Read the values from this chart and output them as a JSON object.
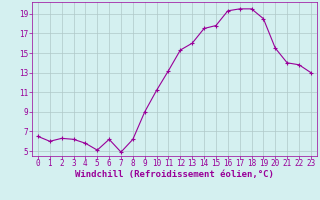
{
  "x": [
    0,
    1,
    2,
    3,
    4,
    5,
    6,
    7,
    8,
    9,
    10,
    11,
    12,
    13,
    14,
    15,
    16,
    17,
    18,
    19,
    20,
    21,
    22,
    23
  ],
  "y": [
    6.5,
    6.0,
    6.3,
    6.2,
    5.8,
    5.1,
    6.2,
    4.9,
    6.2,
    9.0,
    11.2,
    13.2,
    15.3,
    16.0,
    17.5,
    17.8,
    19.3,
    19.5,
    19.5,
    18.5,
    15.5,
    14.0,
    13.8,
    13.0
  ],
  "line_color": "#990099",
  "marker": "+",
  "marker_size": 3,
  "marker_lw": 0.8,
  "bg_color": "#d4f0f0",
  "grid_color": "#b0c8c8",
  "xlabel": "Windchill (Refroidissement éolien,°C)",
  "xlabel_color": "#990099",
  "xlabel_fontsize": 6.5,
  "yticks": [
    5,
    7,
    9,
    11,
    13,
    15,
    17,
    19
  ],
  "xticks": [
    0,
    1,
    2,
    3,
    4,
    5,
    6,
    7,
    8,
    9,
    10,
    11,
    12,
    13,
    14,
    15,
    16,
    17,
    18,
    19,
    20,
    21,
    22,
    23
  ],
  "xlim": [
    -0.5,
    23.5
  ],
  "ylim": [
    4.5,
    20.2
  ],
  "tick_color": "#990099",
  "tick_fontsize": 5.5,
  "spine_color": "#990099",
  "line_width": 0.8
}
